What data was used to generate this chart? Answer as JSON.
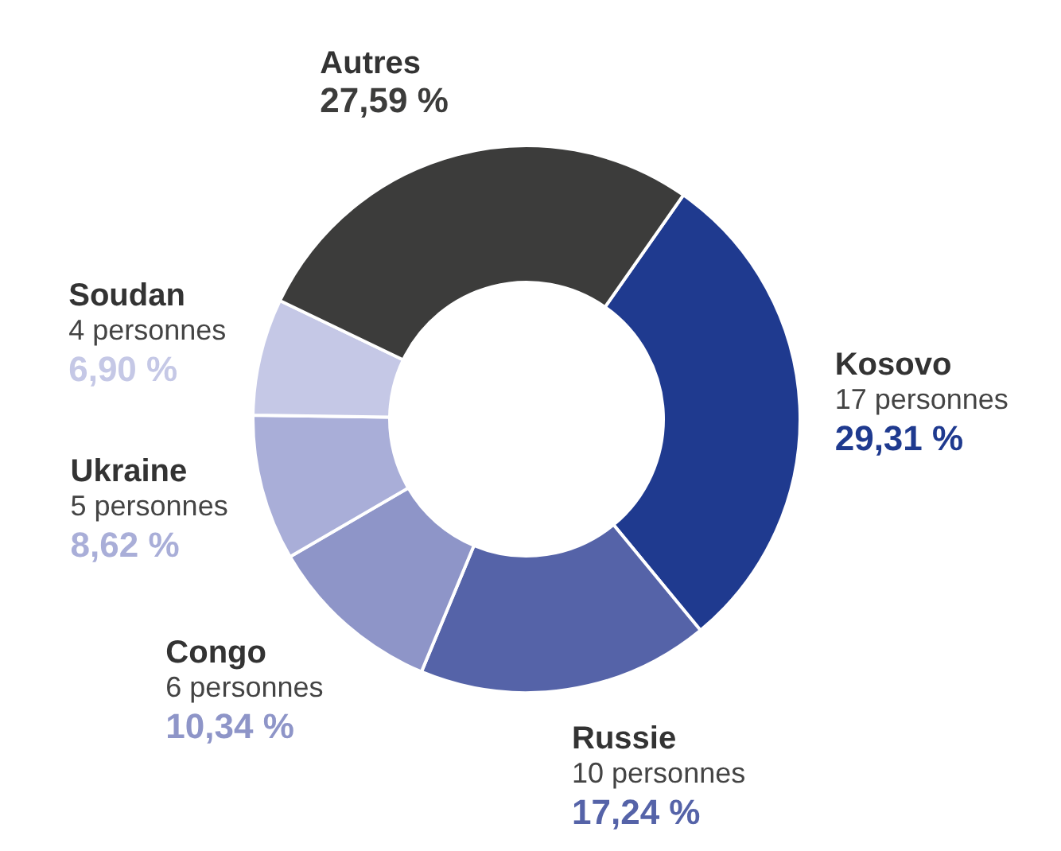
{
  "chart_data": {
    "type": "donut",
    "categories": [
      "Kosovo",
      "Russie",
      "Congo",
      "Ukraine",
      "Soudan",
      "Autres"
    ],
    "values": [
      29.31,
      17.24,
      10.34,
      8.62,
      6.9,
      27.59
    ],
    "value_labels": [
      "29,31 %",
      "17,24 %",
      "10,34 %",
      "8,62 %",
      "6,90 %",
      "27,59 %"
    ],
    "colors": [
      "#1f3a8f",
      "#5563a8",
      "#8e95c8",
      "#a9aed8",
      "#c5c8e6",
      "#3c3c3b"
    ],
    "annotations": [
      {
        "text": "17 personnes",
        "x": "Kosovo"
      },
      {
        "text": "10 personnes",
        "x": "Russie"
      },
      {
        "text": "6 personnes",
        "x": "Congo"
      },
      {
        "text": "5 personnes",
        "x": "Ukraine"
      },
      {
        "text": "4 personnes",
        "x": "Soudan"
      }
    ],
    "legend": false
  }
}
